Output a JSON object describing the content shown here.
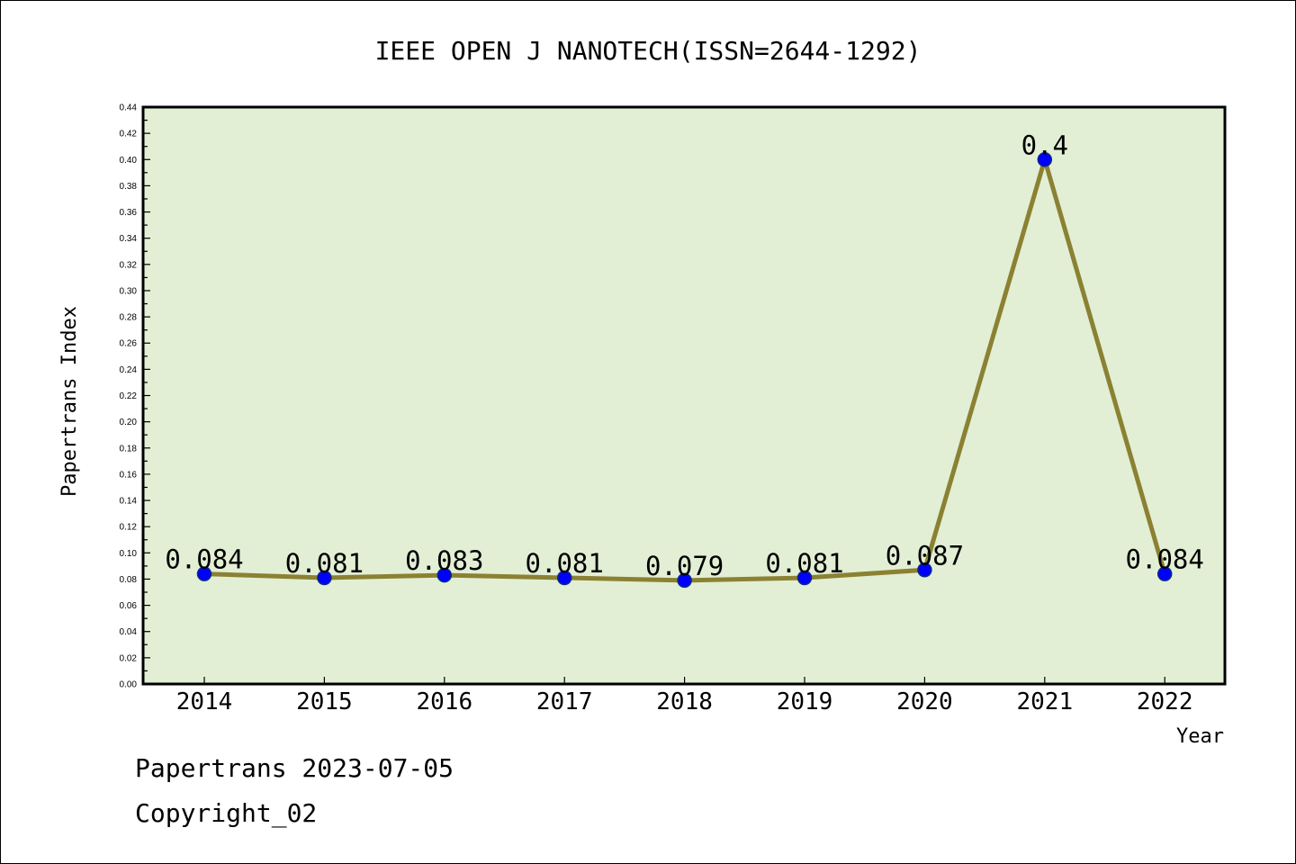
{
  "colors": {
    "plot_background": "#e2efd5",
    "line": "#8b8132",
    "marker": "#0000ff"
  },
  "chart_data": {
    "type": "line",
    "title": "IEEE OPEN J NANOTECH(ISSN=2644-1292)",
    "xlabel": "Year",
    "ylabel": "Papertrans Index",
    "categories": [
      "2014",
      "2015",
      "2016",
      "2017",
      "2018",
      "2019",
      "2020",
      "2021",
      "2022"
    ],
    "series": [
      {
        "values": [
          0.084,
          0.081,
          0.083,
          0.081,
          0.079,
          0.081,
          0.087,
          0.4,
          0.084
        ],
        "labels": [
          "0.084",
          "0.081",
          "0.083",
          "0.081",
          "0.079",
          "0.081",
          "0.087",
          "0.4",
          "0.084"
        ]
      }
    ],
    "ylim": [
      0,
      0.44
    ],
    "yticks": [
      "0.00",
      "0.02",
      "0.04",
      "0.06",
      "0.08",
      "0.10",
      "0.12",
      "0.14",
      "0.16",
      "0.18",
      "0.20",
      "0.22",
      "0.24",
      "0.26",
      "0.28",
      "0.30",
      "0.32",
      "0.34",
      "0.36",
      "0.38",
      "0.40",
      "0.42",
      "0.44"
    ],
    "grid": false,
    "legend": "none"
  },
  "footer": {
    "line1": "Papertrans 2023-07-05",
    "line2": "Copyright_02"
  }
}
